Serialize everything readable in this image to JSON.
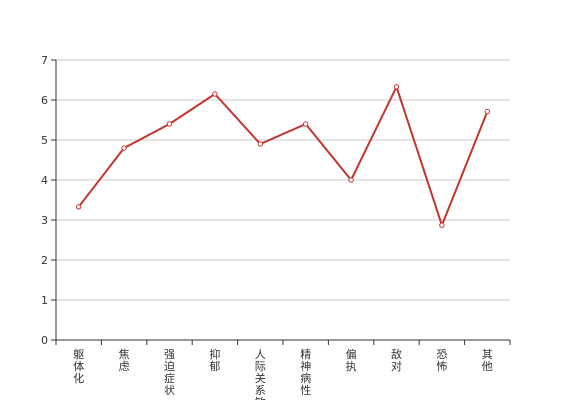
{
  "chart_data": {
    "type": "line",
    "categories": [
      "躯体化",
      "焦虑",
      "强迫症状",
      "抑郁",
      "人际关系敏感",
      "精神病性",
      "偏执",
      "敌对",
      "恐怖",
      "其他"
    ],
    "series": [
      {
        "values": [
          3.33,
          4.8,
          5.4,
          6.15,
          4.9,
          5.4,
          4.0,
          6.33,
          2.87,
          5.71
        ]
      }
    ],
    "ylim": [
      0,
      7
    ],
    "yticks": [
      0,
      1,
      2,
      3,
      4,
      5,
      6,
      7
    ],
    "grid": true,
    "legend": "none",
    "colors": {
      "line": "#c23531",
      "grid": "#cccccc",
      "axis": "#333333",
      "marker_fill": "#ffffff"
    }
  }
}
